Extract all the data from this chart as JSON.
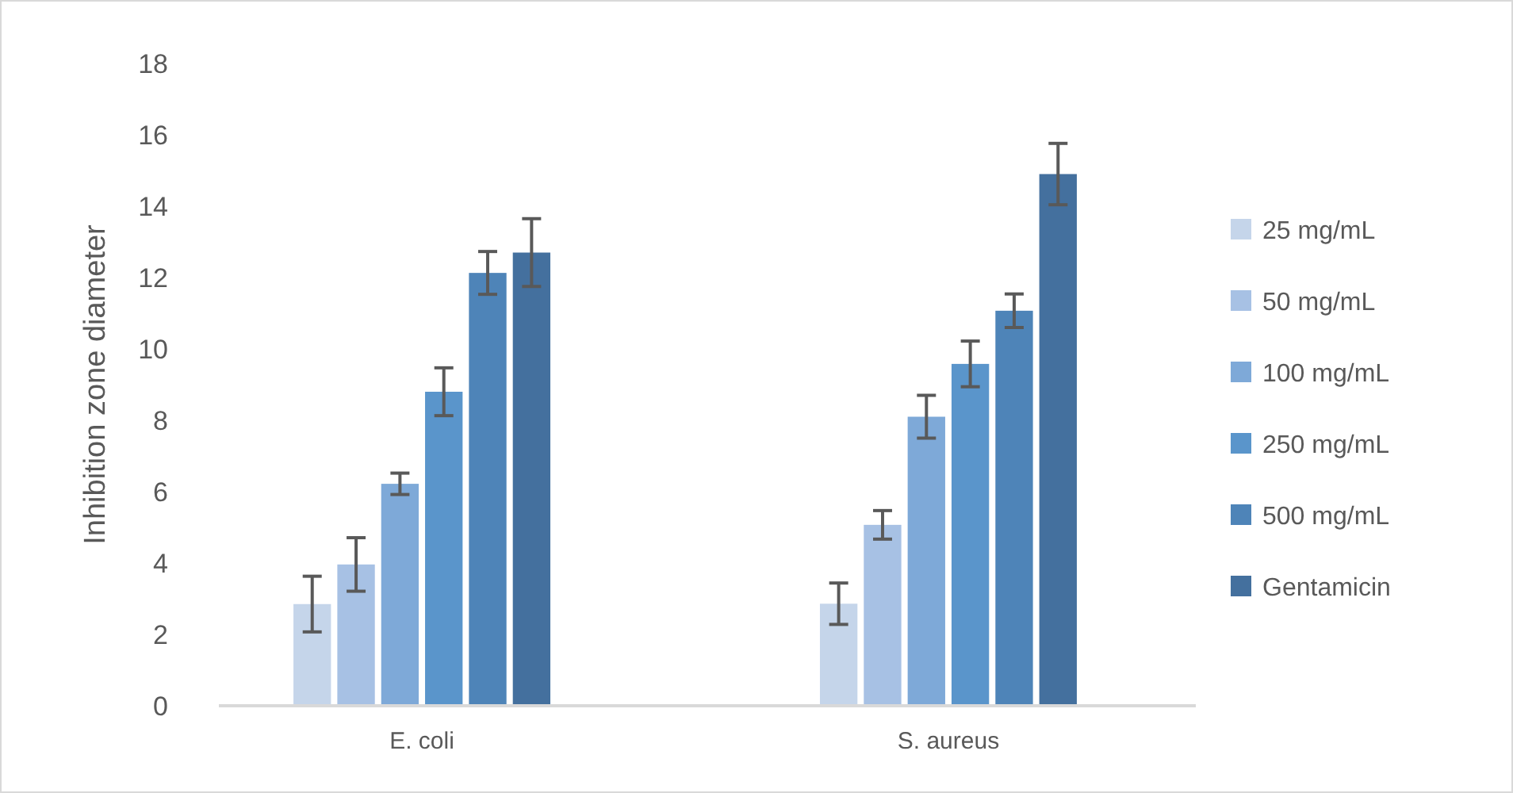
{
  "chart_data": {
    "type": "bar",
    "ylabel": "Inhibition zone diameter",
    "categories": [
      "E. coli",
      "S. aureus"
    ],
    "ylim": [
      0,
      18
    ],
    "yticks": [
      0,
      2,
      4,
      6,
      8,
      10,
      12,
      14,
      16,
      18
    ],
    "grid": false,
    "legend": "right",
    "series": [
      {
        "name": "25 mg/mL",
        "color": "#c5d5ea",
        "values": [
          2.85,
          2.86
        ],
        "errors": [
          0.78,
          0.58
        ]
      },
      {
        "name": "50 mg/mL",
        "color": "#a7c1e4",
        "values": [
          3.96,
          5.07
        ],
        "errors": [
          0.75,
          0.4
        ]
      },
      {
        "name": "100 mg/mL",
        "color": "#7ea9d8",
        "values": [
          6.22,
          8.1
        ],
        "errors": [
          0.3,
          0.6
        ]
      },
      {
        "name": "250 mg/mL",
        "color": "#5a95cb",
        "values": [
          8.8,
          9.58
        ],
        "errors": [
          0.67,
          0.64
        ]
      },
      {
        "name": "500 mg/mL",
        "color": "#4e84b8",
        "values": [
          12.13,
          11.07
        ],
        "errors": [
          0.6,
          0.47
        ]
      },
      {
        "name": "Gentamicin",
        "color": "#44709e",
        "values": [
          12.7,
          14.9
        ],
        "errors": [
          0.95,
          0.86
        ]
      }
    ]
  }
}
